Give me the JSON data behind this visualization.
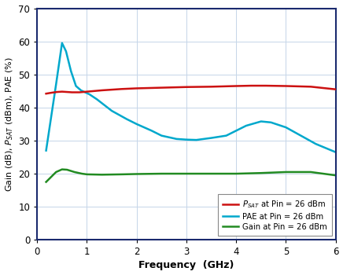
{
  "xlabel": "Frequency  (GHz)",
  "xlim": [
    0,
    6
  ],
  "ylim": [
    0,
    70
  ],
  "yticks": [
    0,
    10,
    20,
    30,
    40,
    50,
    60,
    70
  ],
  "xticks": [
    0,
    1,
    2,
    3,
    4,
    5,
    6
  ],
  "background_color": "#ffffff",
  "grid_color": "#c5d5e8",
  "spine_color": "#1a2a6e",
  "psat_color": "#cc1111",
  "pae_color": "#00a8cc",
  "gain_color": "#228b22",
  "psat_x": [
    0.18,
    0.3,
    0.4,
    0.5,
    0.6,
    0.7,
    0.85,
    1.0,
    1.3,
    1.7,
    2.0,
    2.5,
    3.0,
    3.5,
    4.0,
    4.3,
    4.6,
    5.0,
    5.5,
    6.0
  ],
  "psat_y": [
    44.2,
    44.5,
    44.7,
    44.8,
    44.7,
    44.6,
    44.6,
    44.8,
    45.2,
    45.6,
    45.8,
    46.0,
    46.2,
    46.3,
    46.5,
    46.6,
    46.6,
    46.5,
    46.3,
    45.5
  ],
  "pae_x": [
    0.18,
    0.28,
    0.38,
    0.5,
    0.58,
    0.68,
    0.78,
    0.88,
    0.95,
    1.05,
    1.2,
    1.5,
    1.8,
    2.0,
    2.3,
    2.5,
    2.8,
    3.0,
    3.2,
    3.5,
    3.8,
    4.0,
    4.2,
    4.5,
    4.7,
    5.0,
    5.3,
    5.6,
    6.0
  ],
  "pae_y": [
    27.0,
    37.0,
    47.0,
    59.5,
    57.0,
    51.0,
    46.5,
    45.2,
    44.7,
    44.0,
    42.5,
    39.0,
    36.5,
    35.0,
    33.0,
    31.5,
    30.5,
    30.3,
    30.2,
    30.8,
    31.5,
    33.0,
    34.5,
    35.8,
    35.5,
    34.0,
    31.5,
    29.0,
    26.5
  ],
  "gain_x": [
    0.18,
    0.28,
    0.38,
    0.5,
    0.6,
    0.75,
    0.9,
    1.0,
    1.3,
    1.7,
    2.0,
    2.5,
    3.0,
    3.5,
    4.0,
    4.5,
    5.0,
    5.5,
    6.0
  ],
  "gain_y": [
    17.5,
    19.0,
    20.5,
    21.3,
    21.2,
    20.5,
    20.0,
    19.8,
    19.7,
    19.8,
    19.9,
    20.0,
    20.0,
    20.0,
    20.0,
    20.2,
    20.5,
    20.5,
    19.5
  ],
  "legend_psat": "$\\mathbf{P}$$_{\\mathbf{SAT}}$ at Pin = 26 dBm",
  "legend_pae": "PAE at Pin = 26 dBm",
  "legend_gain": "Gain at Pin = 26 dBm",
  "lw": 1.8
}
